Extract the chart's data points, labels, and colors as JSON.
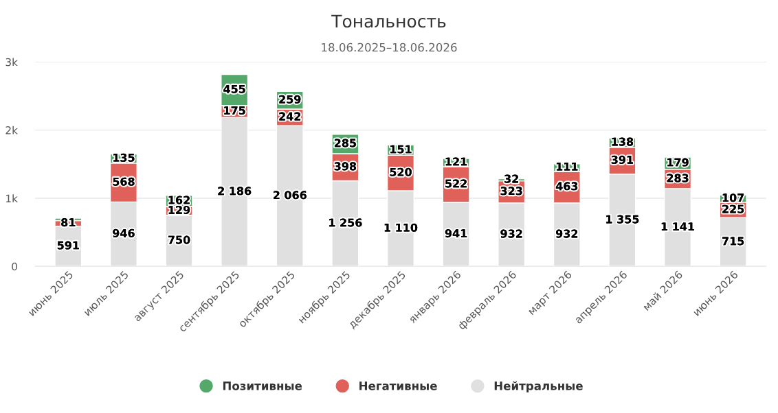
{
  "chart_data": {
    "type": "bar",
    "title": "Тональность",
    "subtitle": "18.06.2025–18.06.2026",
    "stacked": true,
    "categories": [
      "июнь 2025",
      "июль 2025",
      "август 2025",
      "сентябрь 2025",
      "октябрь 2025",
      "ноябрь 2025",
      "декабрь 2025",
      "январь 2026",
      "февраль 2026",
      "март 2026",
      "апрель 2026",
      "май 2026",
      "июнь 2026"
    ],
    "series": [
      {
        "name": "Нейтральные",
        "color": "#e0e0e0",
        "values": [
          591,
          946,
          750,
          2186,
          2066,
          1256,
          1110,
          941,
          932,
          932,
          1355,
          1141,
          715
        ],
        "value_labels": [
          "591",
          "946",
          "750",
          "2 186",
          "2 066",
          "1 256",
          "1 110",
          "941",
          "932",
          "932",
          "1 355",
          "1 141",
          "715"
        ]
      },
      {
        "name": "Негативные",
        "color": "#e0605a",
        "values": [
          81,
          568,
          129,
          175,
          242,
          398,
          520,
          522,
          323,
          463,
          391,
          283,
          225
        ],
        "value_labels": [
          "81",
          "568",
          "129",
          "175",
          "242",
          "398",
          "520",
          "522",
          "323",
          "463",
          "391",
          "283",
          "225"
        ]
      },
      {
        "name": "Позитивные",
        "color": "#54a96a",
        "values": [
          35,
          135,
          162,
          455,
          259,
          285,
          151,
          121,
          32,
          111,
          138,
          179,
          107
        ],
        "value_labels": [
          null,
          "135",
          "162",
          "455",
          "259",
          "285",
          "151",
          "121",
          "32",
          "111",
          "138",
          "179",
          "107"
        ]
      }
    ],
    "ylim": [
      0,
      3000
    ],
    "yticks": [
      0,
      {
        "value": 1000,
        "label": "1k"
      },
      {
        "value": 2000,
        "label": "2k"
      },
      {
        "value": 3000,
        "label": "3k"
      }
    ],
    "grid": "y",
    "legend": "bottom"
  }
}
